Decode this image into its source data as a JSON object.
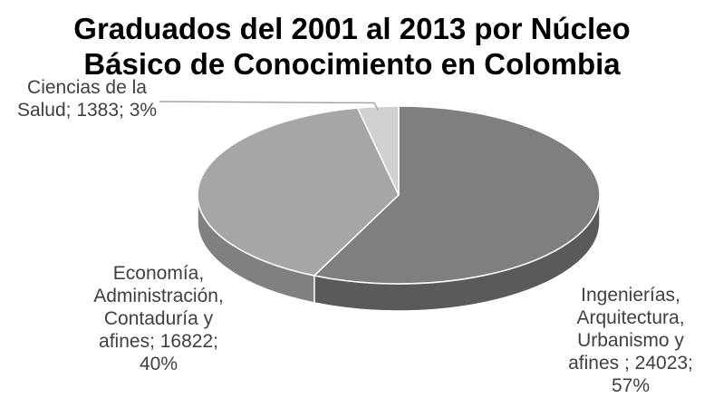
{
  "chart_data": {
    "type": "pie",
    "title_lines": [
      "Graduados del 2001 al 2013 por Núcleo",
      "Básico de Conocimiento en Colombia"
    ],
    "slices": [
      {
        "category": "Ingenierías, Arquitectura, Urbanismo y afines",
        "value": 24023,
        "percent": 57,
        "label_lines": [
          "Ingenierías,",
          "Arquitectura,",
          "Urbanismo y",
          "afines ; 24023;",
          "57%"
        ],
        "color": "#7f7f7f",
        "side_color": "#5a5a5a"
      },
      {
        "category": "Economía, Administración, Contaduría y afines",
        "value": 16822,
        "percent": 40,
        "label_lines": [
          "Economía,",
          "Administración,",
          "Contaduría y",
          "afines; 16822;",
          "40%"
        ],
        "color": "#a6a6a6",
        "side_color": "#808080"
      },
      {
        "category": "Ciencias de la Salud",
        "value": 1383,
        "percent": 3,
        "label_lines": [
          "Ciencias de la",
          "Salud; 1383; 3%"
        ],
        "color": "#d0d0d0",
        "side_color": "#a8a8a8"
      }
    ],
    "style": "3d-pie",
    "legend": "none"
  }
}
